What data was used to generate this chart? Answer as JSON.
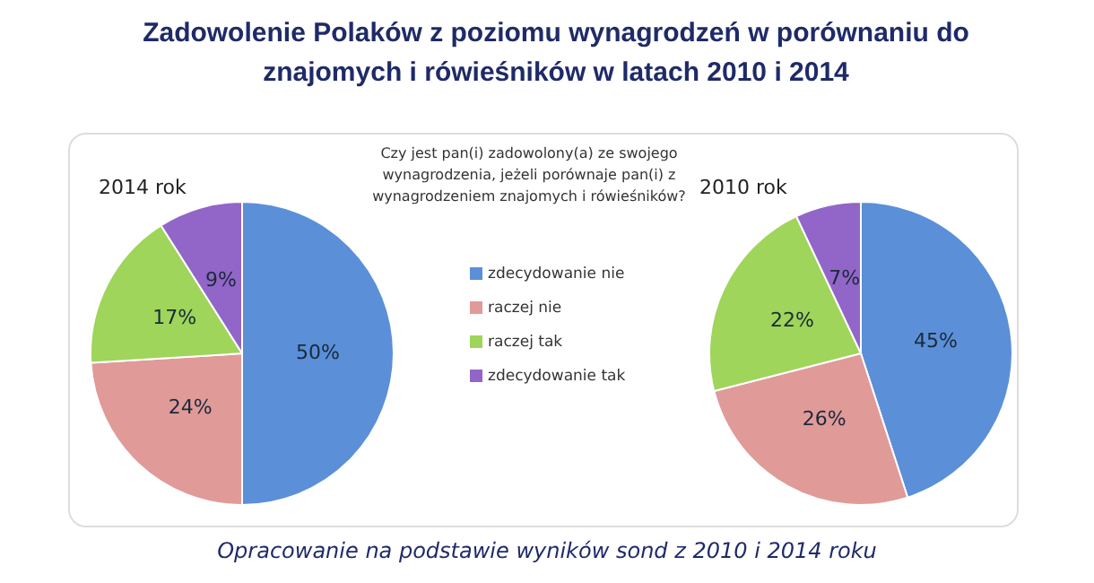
{
  "chart_data": [
    {
      "type": "other",
      "title": "Zadowolenie Polaków z poziomu wynagrodzeń w porównaniu do znajomych i rówieśników w latach 2010 i 2014",
      "annotations": [
        "Opracowanie na podstawie wyników sond z 2010 i 2014 roku"
      ]
    },
    {
      "type": "pie",
      "legend_title": "Czy jest pan(i) zadowolony(a) ze swojego wynagrodzenia, jeżeli porównaje pan(i) z wynagrodzeniem znajomych i rówieśników?",
      "legend": "right",
      "categories": [
        "zdecydowanie nie",
        "raczej nie",
        "raczej tak",
        "zdecydowanie tak"
      ],
      "colors": [
        "#5b8fd8",
        "#e09a98",
        "#9ed55a",
        "#9266c8"
      ],
      "series": [
        {
          "name": "2014 rok",
          "values": [
            50,
            24,
            17,
            9
          ],
          "value_labels": [
            "50%",
            "24%",
            "17%",
            "9%"
          ]
        },
        {
          "name": "2010 rok",
          "values": [
            45,
            26,
            22,
            7
          ],
          "value_labels": [
            "45%",
            "26%",
            "22%",
            "7%"
          ]
        }
      ]
    }
  ]
}
